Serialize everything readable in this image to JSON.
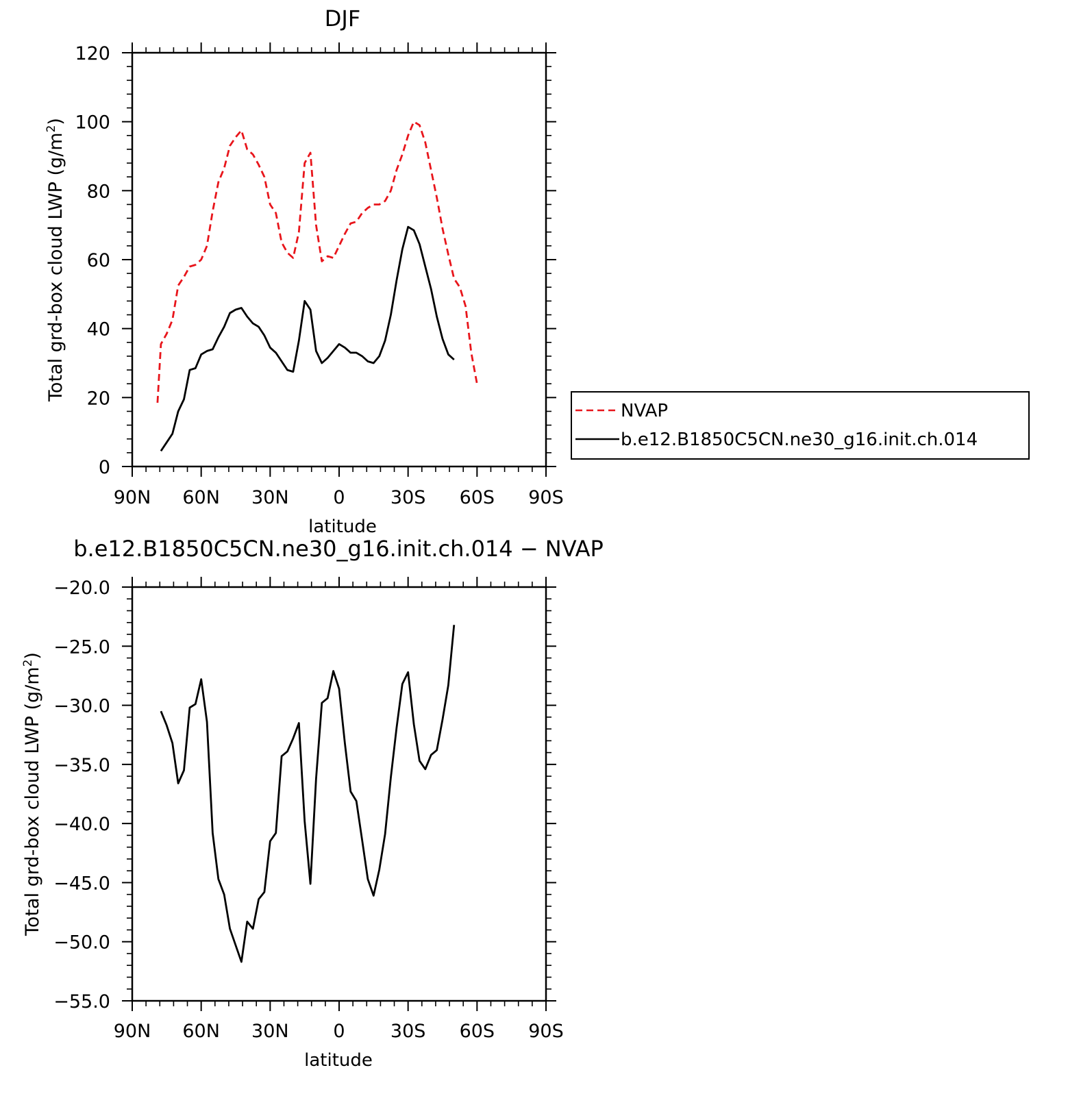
{
  "chart_data": [
    {
      "type": "line",
      "title": "DJF",
      "xlabel": "latitude",
      "ylabel": "Total grd-box cloud LWP (g/m²)",
      "ylabel_main": "Total grd-box cloud LWP (g/m",
      "ylabel_sup": "2",
      "ylabel_end": ")",
      "xlim": [
        90,
        -90
      ],
      "ylim": [
        0,
        120
      ],
      "x_ticks": [
        {
          "value": 90,
          "label": "90N"
        },
        {
          "value": 60,
          "label": "60N"
        },
        {
          "value": 30,
          "label": "30N"
        },
        {
          "value": 0,
          "label": "0"
        },
        {
          "value": -30,
          "label": "30S"
        },
        {
          "value": -60,
          "label": "60S"
        },
        {
          "value": -90,
          "label": "90S"
        }
      ],
      "y_ticks": [
        {
          "value": 0,
          "label": "0"
        },
        {
          "value": 20,
          "label": "20"
        },
        {
          "value": 40,
          "label": "40"
        },
        {
          "value": 60,
          "label": "60"
        },
        {
          "value": 80,
          "label": "80"
        },
        {
          "value": 100,
          "label": "100"
        },
        {
          "value": 120,
          "label": "120"
        }
      ],
      "legend_position": "outside-right",
      "series": [
        {
          "name": "NVAP",
          "color": "#e8151b",
          "style": "dashed",
          "points": [
            [
              79,
              18.5
            ],
            [
              77.5,
              35.5
            ],
            [
              75,
              38.5
            ],
            [
              72.5,
              42.5
            ],
            [
              70,
              52.5
            ],
            [
              67.5,
              55
            ],
            [
              65,
              58
            ],
            [
              62.5,
              58.5
            ],
            [
              60,
              60
            ],
            [
              57.5,
              64
            ],
            [
              55,
              74
            ],
            [
              52.5,
              82.5
            ],
            [
              50,
              86.5
            ],
            [
              47.5,
              93
            ],
            [
              45,
              95.5
            ],
            [
              42.5,
              97.5
            ],
            [
              40,
              92
            ],
            [
              37.5,
              90.5
            ],
            [
              35,
              87.5
            ],
            [
              32.5,
              84
            ],
            [
              30,
              76
            ],
            [
              27.5,
              73.5
            ],
            [
              25,
              65
            ],
            [
              22.5,
              62
            ],
            [
              20,
              60.5
            ],
            [
              17.5,
              68
            ],
            [
              15,
              88
            ],
            [
              12.5,
              91
            ],
            [
              10,
              70
            ],
            [
              7.5,
              59.5
            ],
            [
              5,
              61
            ],
            [
              2.5,
              60.5
            ],
            [
              0,
              64
            ],
            [
              -2.5,
              67.5
            ],
            [
              -5,
              70.5
            ],
            [
              -7.5,
              71
            ],
            [
              -10,
              73.5
            ],
            [
              -12.5,
              75
            ],
            [
              -15,
              76
            ],
            [
              -17.5,
              76
            ],
            [
              -20,
              77
            ],
            [
              -22.5,
              80
            ],
            [
              -25,
              86
            ],
            [
              -27.5,
              90.5
            ],
            [
              -30,
              96
            ],
            [
              -32.5,
              100
            ],
            [
              -35,
              99
            ],
            [
              -37.5,
              94
            ],
            [
              -40,
              86
            ],
            [
              -42.5,
              78
            ],
            [
              -45,
              69
            ],
            [
              -47.5,
              61.5
            ],
            [
              -50,
              54.5
            ],
            [
              -52.5,
              52
            ],
            [
              -55,
              46.5
            ],
            [
              -57.5,
              33
            ],
            [
              -60,
              24
            ]
          ]
        },
        {
          "name": "b.e12.B1850C5CN.ne30_g16.init.ch.014",
          "color": "#000000",
          "style": "solid",
          "points": [
            [
              77.5,
              4.5
            ],
            [
              75,
              7
            ],
            [
              72.5,
              9.5
            ],
            [
              70,
              16
            ],
            [
              67.5,
              19.5
            ],
            [
              65,
              28
            ],
            [
              62.5,
              28.5
            ],
            [
              60,
              32.5
            ],
            [
              57.5,
              33.5
            ],
            [
              55,
              34
            ],
            [
              52.5,
              37.5
            ],
            [
              50,
              40.5
            ],
            [
              47.5,
              44.5
            ],
            [
              45,
              45.5
            ],
            [
              42.5,
              46
            ],
            [
              40,
              43.5
            ],
            [
              37.5,
              41.5
            ],
            [
              35,
              40.5
            ],
            [
              32.5,
              38
            ],
            [
              30,
              34.5
            ],
            [
              27.5,
              33
            ],
            [
              25,
              30.5
            ],
            [
              22.5,
              28
            ],
            [
              20,
              27.5
            ],
            [
              17.5,
              36.5
            ],
            [
              15,
              48
            ],
            [
              12.5,
              45.5
            ],
            [
              10,
              33.5
            ],
            [
              7.5,
              30
            ],
            [
              5,
              31.5
            ],
            [
              2.5,
              33.5
            ],
            [
              0,
              35.5
            ],
            [
              -2.5,
              34.5
            ],
            [
              -5,
              33
            ],
            [
              -7.5,
              33
            ],
            [
              -10,
              32
            ],
            [
              -12.5,
              30.5
            ],
            [
              -15,
              30
            ],
            [
              -17.5,
              32
            ],
            [
              -20,
              36.5
            ],
            [
              -22.5,
              44
            ],
            [
              -25,
              54
            ],
            [
              -27.5,
              63
            ],
            [
              -30,
              69.5
            ],
            [
              -32.5,
              68.5
            ],
            [
              -35,
              64.5
            ],
            [
              -37.5,
              58
            ],
            [
              -40,
              51.5
            ],
            [
              -42.5,
              43.5
            ],
            [
              -45,
              37
            ],
            [
              -47.5,
              32.5
            ],
            [
              -50,
              31
            ]
          ]
        }
      ]
    },
    {
      "type": "line",
      "title": "b.e12.B1850C5CN.ne30_g16.init.ch.014 − NVAP",
      "xlabel": "latitude",
      "ylabel": "Total grd-box cloud LWP (g/m²)",
      "ylabel_main": "Total grd-box cloud LWP (g/m",
      "ylabel_sup": "2",
      "ylabel_end": ")",
      "xlim": [
        90,
        -90
      ],
      "ylim": [
        -55,
        -20
      ],
      "x_ticks": [
        {
          "value": 90,
          "label": "90N"
        },
        {
          "value": 60,
          "label": "60N"
        },
        {
          "value": 30,
          "label": "30N"
        },
        {
          "value": 0,
          "label": "0"
        },
        {
          "value": -30,
          "label": "30S"
        },
        {
          "value": -60,
          "label": "60S"
        },
        {
          "value": -90,
          "label": "90S"
        }
      ],
      "y_ticks": [
        {
          "value": -55,
          "label": "−55.0"
        },
        {
          "value": -50,
          "label": "−50.0"
        },
        {
          "value": -45,
          "label": "−45.0"
        },
        {
          "value": -40,
          "label": "−40.0"
        },
        {
          "value": -35,
          "label": "−35.0"
        },
        {
          "value": -30,
          "label": "−30.0"
        },
        {
          "value": -25,
          "label": "−25.0"
        },
        {
          "value": -20,
          "label": "−20.0"
        }
      ],
      "series": [
        {
          "color": "#000000",
          "style": "solid",
          "points": [
            [
              77.5,
              -30.5
            ],
            [
              75,
              -31.7
            ],
            [
              72.5,
              -33.2
            ],
            [
              70,
              -36.6
            ],
            [
              67.5,
              -35.5
            ],
            [
              65,
              -30.2
            ],
            [
              62.5,
              -29.9
            ],
            [
              60,
              -27.8
            ],
            [
              57.5,
              -31.4
            ],
            [
              55,
              -40.8
            ],
            [
              52.5,
              -44.7
            ],
            [
              50,
              -46
            ],
            [
              47.5,
              -48.9
            ],
            [
              45,
              -50.3
            ],
            [
              42.5,
              -51.7
            ],
            [
              40,
              -48.3
            ],
            [
              37.5,
              -48.9
            ],
            [
              35,
              -46.4
            ],
            [
              32.5,
              -45.8
            ],
            [
              30,
              -41.5
            ],
            [
              27.5,
              -40.8
            ],
            [
              25,
              -34.3
            ],
            [
              22.5,
              -33.9
            ],
            [
              20,
              -32.8
            ],
            [
              17.5,
              -31.5
            ],
            [
              15,
              -39.8
            ],
            [
              12.5,
              -45.1
            ],
            [
              10,
              -36.2
            ],
            [
              7.5,
              -29.8
            ],
            [
              5,
              -29.4
            ],
            [
              2.5,
              -27.1
            ],
            [
              0,
              -28.6
            ],
            [
              -2.5,
              -33.2
            ],
            [
              -5,
              -37.3
            ],
            [
              -7.5,
              -38.1
            ],
            [
              -10,
              -41.4
            ],
            [
              -12.5,
              -44.7
            ],
            [
              -15,
              -46.1
            ],
            [
              -17.5,
              -43.9
            ],
            [
              -20,
              -40.9
            ],
            [
              -22.5,
              -36.1
            ],
            [
              -25,
              -31.9
            ],
            [
              -27.5,
              -28.2
            ],
            [
              -30,
              -27.2
            ],
            [
              -32.5,
              -31.6
            ],
            [
              -35,
              -34.7
            ],
            [
              -37.5,
              -35.4
            ],
            [
              -40,
              -34.2
            ],
            [
              -42.5,
              -33.8
            ],
            [
              -45,
              -31.2
            ],
            [
              -47.5,
              -28.3
            ],
            [
              -50,
              -23.2
            ]
          ]
        }
      ]
    }
  ]
}
